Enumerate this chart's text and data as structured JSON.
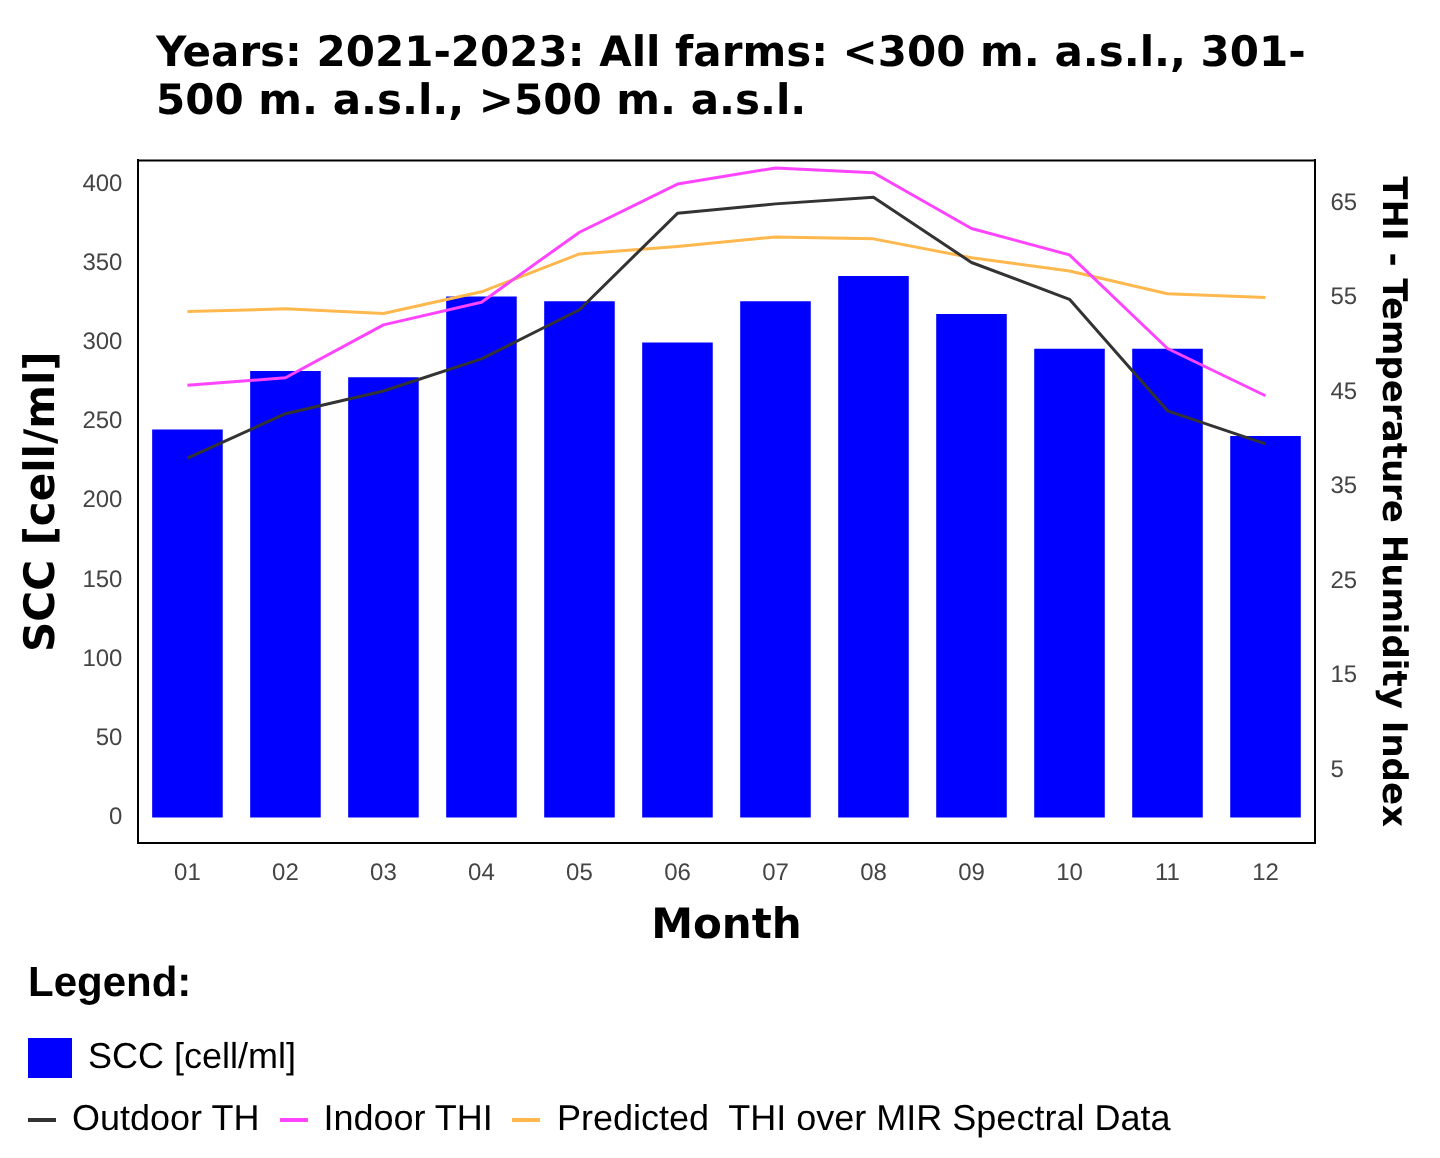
{
  "chart_data": {
    "type": "bar",
    "title": "Years: 2021-2023: All farms: <300 m. a.s.l., 301-500 m. a.s.l., >500 m. a.s.l.",
    "xlabel": "Month",
    "ylabel": "SCC [cell/ml]",
    "y2label": "THI - Temperature Humidity Index",
    "legend_title": "Legend:",
    "legend": "bottom",
    "grid": false,
    "categories": [
      "01",
      "02",
      "03",
      "04",
      "05",
      "06",
      "07",
      "08",
      "09",
      "10",
      "11",
      "12"
    ],
    "ylim": [
      -16,
      415
    ],
    "yticks": [
      0,
      50,
      100,
      150,
      200,
      250,
      300,
      350,
      400
    ],
    "y2lim": [
      -2.7,
      69.5
    ],
    "y2ticks": [
      5,
      15,
      25,
      35,
      45,
      55,
      65
    ],
    "series": [
      {
        "name": "SCC [cell/ml]",
        "color": "#0000ff",
        "values": [
          245,
          282,
          278,
          329,
          326,
          300,
          326,
          342,
          318,
          296,
          296,
          241
        ]
      },
      {
        "name": "Outdoor TH",
        "type": "line",
        "axis": "y2",
        "color": "#333333",
        "values": [
          38.0,
          42.7,
          45.1,
          48.5,
          53.7,
          63.9,
          64.9,
          65.6,
          58.7,
          54.8,
          43.0,
          39.5
        ]
      },
      {
        "name": "Indoor THI",
        "type": "line",
        "axis": "y2",
        "color": "#ff44ff",
        "values": [
          45.7,
          46.5,
          52.1,
          54.5,
          61.9,
          67.0,
          68.7,
          68.2,
          62.3,
          59.5,
          49.6,
          44.6
        ]
      },
      {
        "name": "Predicted  THI over MIR Spectral Data",
        "type": "line",
        "axis": "y2",
        "color": "#ffb84d",
        "values": [
          53.5,
          53.8,
          53.3,
          55.6,
          59.6,
          60.4,
          61.4,
          61.2,
          59.2,
          57.8,
          55.4,
          55.0
        ]
      }
    ]
  }
}
